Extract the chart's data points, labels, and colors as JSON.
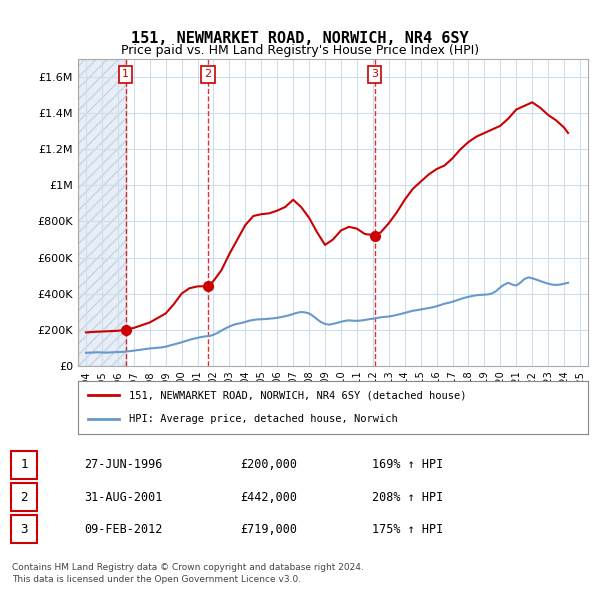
{
  "title": "151, NEWMARKET ROAD, NORWICH, NR4 6SY",
  "subtitle": "Price paid vs. HM Land Registry's House Price Index (HPI)",
  "legend_line1": "151, NEWMARKET ROAD, NORWICH, NR4 6SY (detached house)",
  "legend_line2": "HPI: Average price, detached house, Norwich",
  "footer1": "Contains HM Land Registry data © Crown copyright and database right 2024.",
  "footer2": "This data is licensed under the Open Government Licence v3.0.",
  "table": [
    {
      "num": "1",
      "date": "27-JUN-1996",
      "price": "£200,000",
      "hpi": "169% ↑ HPI"
    },
    {
      "num": "2",
      "date": "31-AUG-2001",
      "price": "£442,000",
      "hpi": "208% ↑ HPI"
    },
    {
      "num": "3",
      "date": "09-FEB-2012",
      "price": "£719,000",
      "hpi": "175% ↑ HPI"
    }
  ],
  "sale_dates_num": [
    1996.49,
    2001.66,
    2012.11
  ],
  "sale_prices": [
    200000,
    442000,
    719000
  ],
  "sale_labels": [
    "1",
    "2",
    "3"
  ],
  "red_color": "#cc0000",
  "blue_color": "#6699cc",
  "grid_color": "#ccddee",
  "hatch_color": "#dde8f0",
  "background_color": "#ffffff",
  "ylim": [
    0,
    1700000
  ],
  "xlim_start": 1993.5,
  "xlim_end": 2025.5,
  "yticks": [
    0,
    200000,
    400000,
    600000,
    800000,
    1000000,
    1200000,
    1400000,
    1600000
  ],
  "ytick_labels": [
    "£0",
    "£200K",
    "£400K",
    "£600K",
    "£800K",
    "£1M",
    "£1.2M",
    "£1.4M",
    "£1.6M"
  ],
  "xticks": [
    1994,
    1995,
    1996,
    1997,
    1998,
    1999,
    2000,
    2001,
    2002,
    2003,
    2004,
    2005,
    2006,
    2007,
    2008,
    2009,
    2010,
    2011,
    2012,
    2013,
    2014,
    2015,
    2016,
    2017,
    2018,
    2019,
    2020,
    2021,
    2022,
    2023,
    2024,
    2025
  ],
  "hpi_dates": [
    1994.0,
    1994.25,
    1994.5,
    1994.75,
    1995.0,
    1995.25,
    1995.5,
    1995.75,
    1996.0,
    1996.25,
    1996.5,
    1996.75,
    1997.0,
    1997.25,
    1997.5,
    1997.75,
    1998.0,
    1998.25,
    1998.5,
    1998.75,
    1999.0,
    1999.25,
    1999.5,
    1999.75,
    2000.0,
    2000.25,
    2000.5,
    2000.75,
    2001.0,
    2001.25,
    2001.5,
    2001.75,
    2002.0,
    2002.25,
    2002.5,
    2002.75,
    2003.0,
    2003.25,
    2003.5,
    2003.75,
    2004.0,
    2004.25,
    2004.5,
    2004.75,
    2005.0,
    2005.25,
    2005.5,
    2005.75,
    2006.0,
    2006.25,
    2006.5,
    2006.75,
    2007.0,
    2007.25,
    2007.5,
    2007.75,
    2008.0,
    2008.25,
    2008.5,
    2008.75,
    2009.0,
    2009.25,
    2009.5,
    2009.75,
    2010.0,
    2010.25,
    2010.5,
    2010.75,
    2011.0,
    2011.25,
    2011.5,
    2011.75,
    2012.0,
    2012.25,
    2012.5,
    2012.75,
    2013.0,
    2013.25,
    2013.5,
    2013.75,
    2014.0,
    2014.25,
    2014.5,
    2014.75,
    2015.0,
    2015.25,
    2015.5,
    2015.75,
    2016.0,
    2016.25,
    2016.5,
    2016.75,
    2017.0,
    2017.25,
    2017.5,
    2017.75,
    2018.0,
    2018.25,
    2018.5,
    2018.75,
    2019.0,
    2019.25,
    2019.5,
    2019.75,
    2020.0,
    2020.25,
    2020.5,
    2020.75,
    2021.0,
    2021.25,
    2021.5,
    2021.75,
    2022.0,
    2022.25,
    2022.5,
    2022.75,
    2023.0,
    2023.25,
    2023.5,
    2023.75,
    2024.0,
    2024.25
  ],
  "hpi_values": [
    72000,
    73000,
    74000,
    75000,
    74000,
    73000,
    74000,
    75000,
    76000,
    77000,
    79000,
    81000,
    84000,
    87000,
    90000,
    93000,
    96000,
    98000,
    100000,
    102000,
    106000,
    112000,
    118000,
    124000,
    130000,
    137000,
    144000,
    150000,
    155000,
    160000,
    163000,
    165000,
    172000,
    182000,
    195000,
    207000,
    218000,
    227000,
    233000,
    237000,
    243000,
    250000,
    254000,
    257000,
    258000,
    259000,
    261000,
    263000,
    266000,
    270000,
    275000,
    280000,
    287000,
    294000,
    298000,
    296000,
    290000,
    276000,
    258000,
    242000,
    232000,
    228000,
    232000,
    238000,
    244000,
    249000,
    252000,
    250000,
    249000,
    251000,
    254000,
    258000,
    261000,
    265000,
    269000,
    271000,
    273000,
    277000,
    282000,
    287000,
    293000,
    299000,
    305000,
    308000,
    312000,
    316000,
    320000,
    324000,
    330000,
    337000,
    344000,
    349000,
    355000,
    362000,
    370000,
    377000,
    382000,
    387000,
    391000,
    393000,
    394000,
    396000,
    402000,
    415000,
    435000,
    450000,
    460000,
    450000,
    445000,
    460000,
    480000,
    490000,
    485000,
    478000,
    470000,
    462000,
    455000,
    450000,
    448000,
    450000,
    455000,
    460000
  ],
  "red_line_dates": [
    1994.0,
    1994.5,
    1995.0,
    1995.5,
    1996.0,
    1996.49,
    1996.5,
    1997.0,
    1997.5,
    1998.0,
    1998.5,
    1999.0,
    1999.5,
    2000.0,
    2000.5,
    2001.0,
    2001.5,
    2001.66,
    2002.0,
    2002.5,
    2003.0,
    2003.5,
    2004.0,
    2004.5,
    2005.0,
    2005.5,
    2006.0,
    2006.5,
    2007.0,
    2007.5,
    2008.0,
    2008.5,
    2009.0,
    2009.5,
    2010.0,
    2010.5,
    2011.0,
    2011.5,
    2012.0,
    2012.11,
    2012.5,
    2013.0,
    2013.5,
    2014.0,
    2014.5,
    2015.0,
    2015.5,
    2016.0,
    2016.5,
    2017.0,
    2017.5,
    2018.0,
    2018.5,
    2019.0,
    2019.5,
    2020.0,
    2020.5,
    2021.0,
    2021.5,
    2022.0,
    2022.5,
    2023.0,
    2023.5,
    2024.0,
    2024.25
  ],
  "red_line_values": [
    185000,
    188000,
    190000,
    192000,
    194000,
    200000,
    200500,
    210000,
    225000,
    240000,
    265000,
    290000,
    340000,
    400000,
    430000,
    440000,
    441000,
    442000,
    470000,
    530000,
    620000,
    700000,
    780000,
    830000,
    840000,
    845000,
    860000,
    880000,
    920000,
    880000,
    820000,
    740000,
    670000,
    700000,
    750000,
    770000,
    760000,
    730000,
    725000,
    719000,
    740000,
    790000,
    850000,
    920000,
    980000,
    1020000,
    1060000,
    1090000,
    1110000,
    1150000,
    1200000,
    1240000,
    1270000,
    1290000,
    1310000,
    1330000,
    1370000,
    1420000,
    1440000,
    1460000,
    1430000,
    1390000,
    1360000,
    1320000,
    1290000
  ]
}
